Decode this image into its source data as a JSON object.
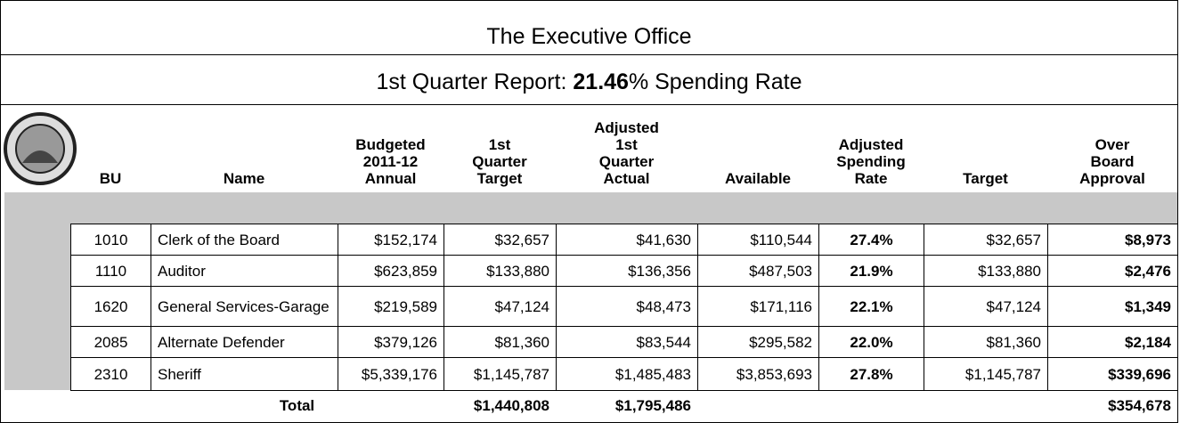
{
  "header": {
    "title": "The Executive Office",
    "subtitle": {
      "prefix": "1st Quarter Report: ",
      "rate": "21.46",
      "suffix": "% Spending Rate"
    }
  },
  "table": {
    "columns": [
      [
        "BU"
      ],
      [
        "Name"
      ],
      [
        "Budgeted",
        "2011-12",
        "Annual"
      ],
      [
        "1st",
        "Quarter",
        "Target"
      ],
      [
        "Adjusted",
        "1st",
        "Quarter",
        "Actual"
      ],
      [
        "Available"
      ],
      [
        "Adjusted",
        "Spending",
        "Rate"
      ],
      [
        "Target"
      ],
      [
        "Over",
        "Board",
        "Approval"
      ]
    ],
    "rows": [
      [
        "1010",
        "Clerk of the Board",
        "$152,174",
        "$32,657",
        "$41,630",
        "$110,544",
        "27.4%",
        "$32,657",
        "$8,973"
      ],
      [
        "1110",
        "Auditor",
        "$623,859",
        "$133,880",
        "$136,356",
        "$487,503",
        "21.9%",
        "$133,880",
        "$2,476"
      ],
      [
        "1620",
        "General Services-Garage",
        "$219,589",
        "$47,124",
        "$48,473",
        "$171,116",
        "22.1%",
        "$47,124",
        "$1,349"
      ],
      [
        "2085",
        "Alternate Defender",
        "$379,126",
        "$81,360",
        "$83,544",
        "$295,582",
        "22.0%",
        "$81,360",
        "$2,184"
      ],
      [
        "2310",
        "Sheriff",
        "$5,339,176",
        "$1,145,787",
        "$1,485,483",
        "$3,853,693",
        "27.8%",
        "$1,145,787",
        "$339,696"
      ]
    ],
    "total": {
      "label": "Total",
      "quarter_target": "$1,440,808",
      "quarter_actual": "$1,795,486",
      "over_board_approval": "$354,678"
    }
  }
}
